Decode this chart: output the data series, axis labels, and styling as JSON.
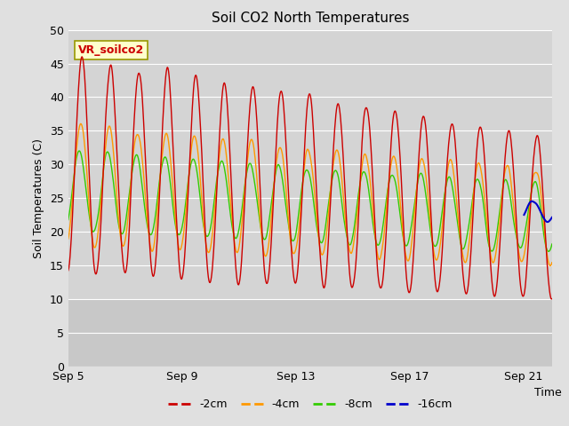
{
  "title": "Soil CO2 North Temperatures",
  "ylabel": "Soil Temperatures (C)",
  "xlabel": "Time",
  "annotation": "VR_soilco2",
  "ylim": [
    0,
    50
  ],
  "yticks": [
    0,
    5,
    10,
    15,
    20,
    25,
    30,
    35,
    40,
    45,
    50
  ],
  "fig_bg_color": "#e0e0e0",
  "plot_bg_color": "#d4d4d4",
  "plot_bg_lower": "#c8c8c8",
  "line_colors": {
    "-2cm": "#cc0000",
    "-4cm": "#ff9900",
    "-8cm": "#33cc00",
    "-16cm": "#0000cc"
  },
  "legend_labels": [
    "-2cm",
    "-4cm",
    "-8cm",
    "-16cm"
  ],
  "xtick_labels": [
    "Sep 5",
    "Sep 9",
    "Sep 13",
    "Sep 17",
    "Sep 21"
  ],
  "xtick_positions": [
    0,
    4,
    8,
    12,
    16
  ],
  "xlim": [
    0,
    17
  ],
  "days": 17,
  "period_days": 1.0
}
